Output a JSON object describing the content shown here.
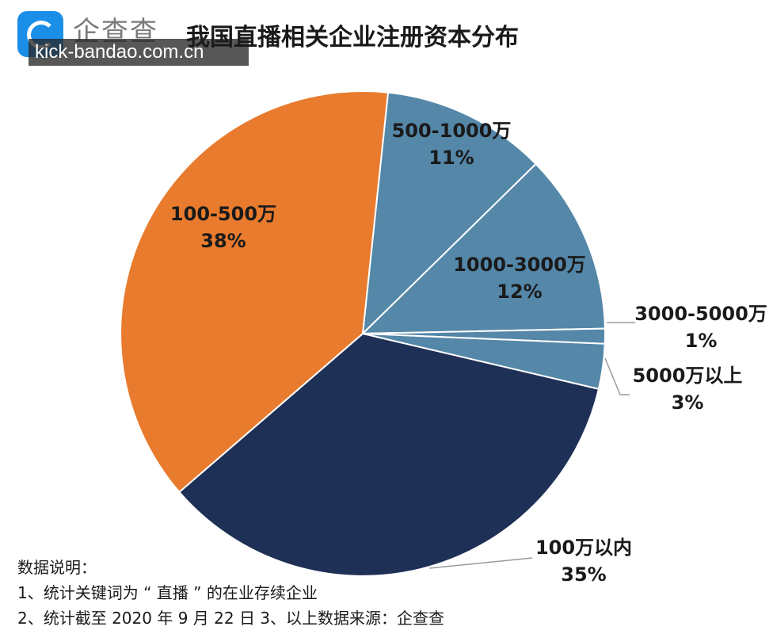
{
  "brand": {
    "name": "企查查",
    "watermark": "kick-bandao.com.cn"
  },
  "chart_data": {
    "type": "pie",
    "title": "我国直播相关企业注册资本分布",
    "slices": [
      {
        "label": "500-1000万",
        "percent": 11,
        "color": "#5487a8"
      },
      {
        "label": "1000-3000万",
        "percent": 12,
        "color": "#5487a8"
      },
      {
        "label": "3000-5000万",
        "percent": 1,
        "color": "#5487a8"
      },
      {
        "label": "5000万以上",
        "percent": 3,
        "color": "#5487a8"
      },
      {
        "label": "100万以内",
        "percent": 35,
        "color": "#1f3057"
      },
      {
        "label": "100-500万",
        "percent": 38,
        "color": "#e87b2d"
      }
    ]
  },
  "notes": {
    "heading": "数据说明：",
    "line1": "1、统计关键词为 “ 直播 ” 的在业存续企业",
    "line2": "2、统计截至 2020 年 9 月 22 日 3、以上数据来源：企查查"
  }
}
